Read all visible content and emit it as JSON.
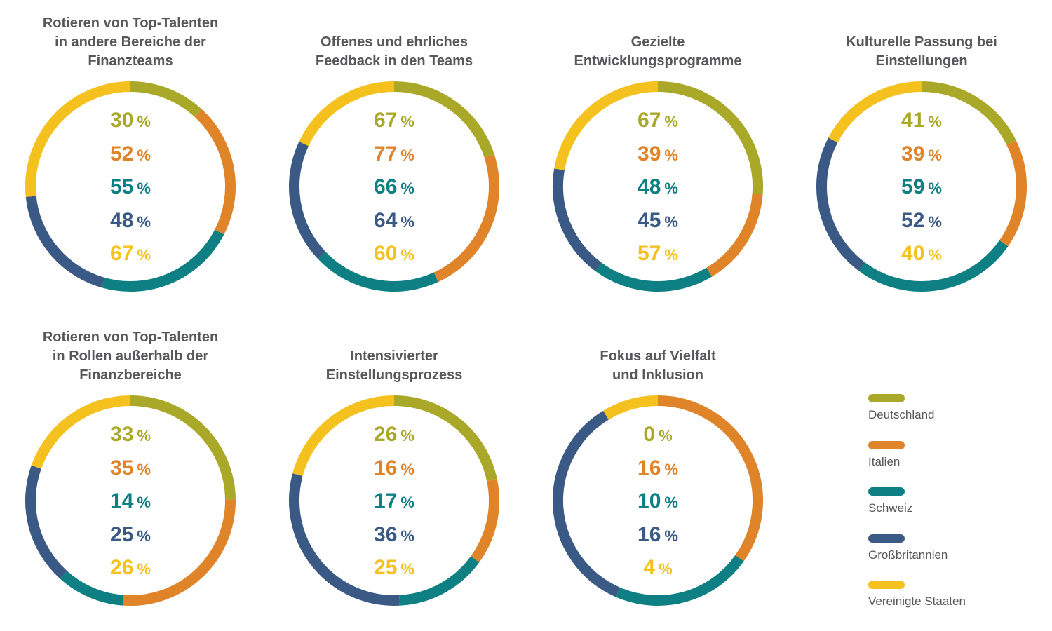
{
  "colors": {
    "Deutschland": "#a9a829",
    "Italien": "#e0842a",
    "Schweiz": "#0e8083",
    "Großbritannien": "#3a5a85",
    "Vereinigte Staaten": "#f5c11e"
  },
  "percent_sign": "%",
  "chart_data": [
    {
      "type": "pie",
      "title": "Rotieren von Top-Talenten\nin andere Bereiche der\nFinanzteams",
      "categories": [
        "Deutschland",
        "Italien",
        "Schweiz",
        "Großbritannien",
        "Vereinigte Staaten"
      ],
      "values": [
        30,
        52,
        55,
        48,
        67
      ]
    },
    {
      "type": "pie",
      "title": "Offenes und ehrliches\nFeedback in den Teams",
      "categories": [
        "Deutschland",
        "Italien",
        "Schweiz",
        "Großbritannien",
        "Vereinigte Staaten"
      ],
      "values": [
        67,
        77,
        66,
        64,
        60
      ]
    },
    {
      "type": "pie",
      "title": "Gezielte\nEntwicklungsprogramme",
      "categories": [
        "Deutschland",
        "Italien",
        "Schweiz",
        "Großbritannien",
        "Vereinigte Staaten"
      ],
      "values": [
        67,
        39,
        48,
        45,
        57
      ]
    },
    {
      "type": "pie",
      "title": "Kulturelle Passung bei\nEinstellungen",
      "categories": [
        "Deutschland",
        "Italien",
        "Schweiz",
        "Großbritannien",
        "Vereinigte Staaten"
      ],
      "values": [
        41,
        39,
        59,
        52,
        40
      ]
    },
    {
      "type": "pie",
      "title": "Rotieren von Top-Talenten\nin Rollen außerhalb der\nFinanzbereiche",
      "categories": [
        "Deutschland",
        "Italien",
        "Schweiz",
        "Großbritannien",
        "Vereinigte Staaten"
      ],
      "values": [
        33,
        35,
        14,
        25,
        26
      ]
    },
    {
      "type": "pie",
      "title": "Intensivierter\nEinstellungsprozess",
      "categories": [
        "Deutschland",
        "Italien",
        "Schweiz",
        "Großbritannien",
        "Vereinigte Staaten"
      ],
      "values": [
        26,
        16,
        17,
        36,
        25
      ]
    },
    {
      "type": "pie",
      "title": "Fokus auf Vielfalt\nund Inklusion",
      "categories": [
        "Deutschland",
        "Italien",
        "Schweiz",
        "Großbritannien",
        "Vereinigte Staaten"
      ],
      "values": [
        0,
        16,
        10,
        16,
        4
      ]
    }
  ],
  "legend": [
    "Deutschland",
    "Italien",
    "Schweiz",
    "Großbritannien",
    "Vereinigte Staaten"
  ]
}
